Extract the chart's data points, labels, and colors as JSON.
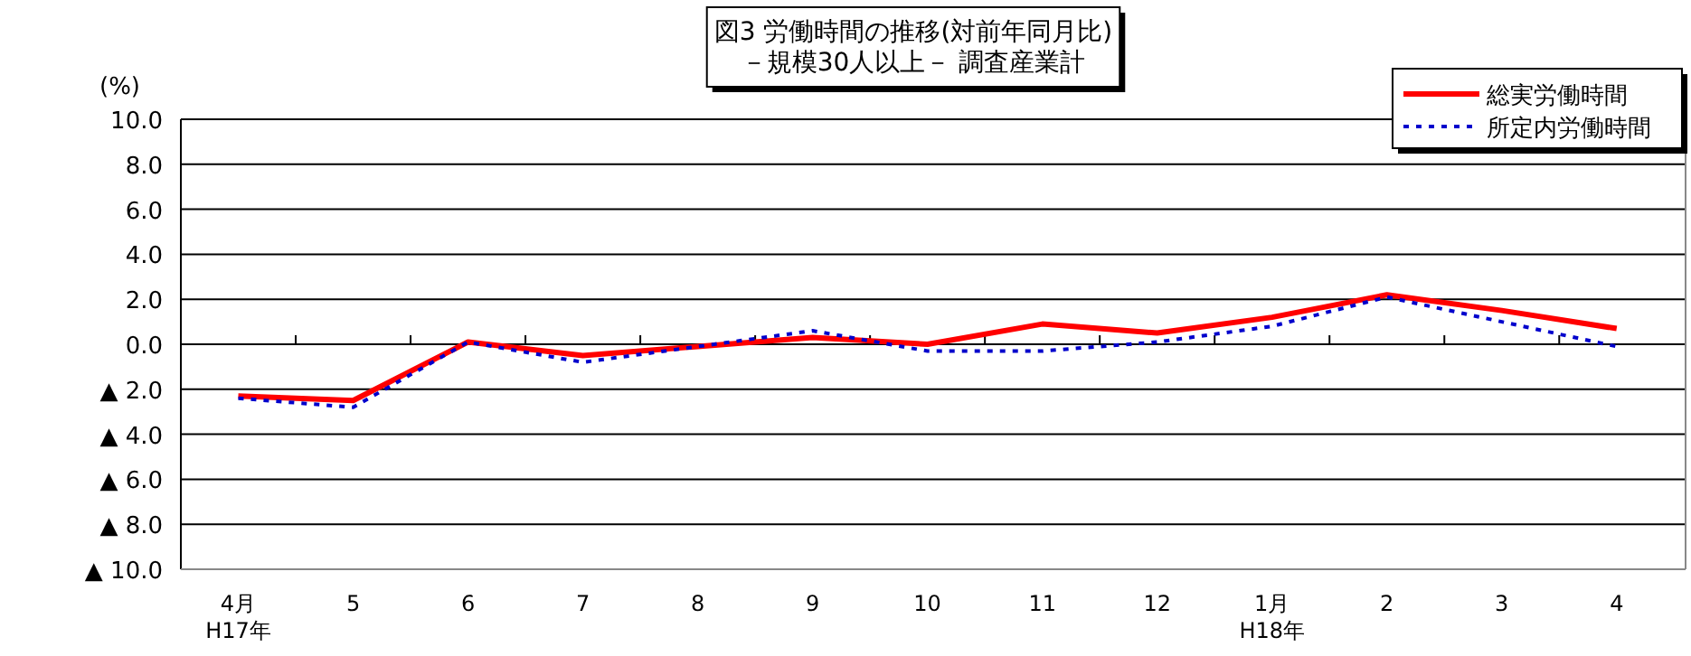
{
  "chart_data": {
    "type": "line",
    "title": "図3  労働時間の推移(対前年同月比)",
    "subtitle": "－規模30人以上－  調査産業計",
    "ylabel": "(%)",
    "categories": [
      "4月\nH17年",
      "5",
      "6",
      "7",
      "8",
      "9",
      "10",
      "11",
      "12",
      "1月\nH18年",
      "2",
      "3",
      "4"
    ],
    "series": [
      {
        "name": "総実労働時間",
        "color": "#ff0000",
        "line_style": "solid",
        "values": [
          -2.3,
          -2.5,
          0.1,
          -0.5,
          -0.1,
          0.3,
          0.0,
          0.9,
          0.5,
          1.2,
          2.2,
          1.5,
          0.7
        ]
      },
      {
        "name": "所定内労働時間",
        "color": "#0000cc",
        "line_style": "dotted",
        "values": [
          -2.4,
          -2.8,
          0.1,
          -0.8,
          -0.1,
          0.6,
          -0.3,
          -0.3,
          0.1,
          0.8,
          2.1,
          1.0,
          -0.1
        ]
      }
    ],
    "ylim": [
      -10,
      10
    ],
    "yticks": [
      {
        "value": 10,
        "label": "10.0"
      },
      {
        "value": 8,
        "label": "8.0"
      },
      {
        "value": 6,
        "label": "6.0"
      },
      {
        "value": 4,
        "label": "4.0"
      },
      {
        "value": 2,
        "label": "2.0"
      },
      {
        "value": 0,
        "label": "0.0"
      },
      {
        "value": -2,
        "label": "▲ 2.0"
      },
      {
        "value": -4,
        "label": "▲ 4.0"
      },
      {
        "value": -6,
        "label": "▲ 6.0"
      },
      {
        "value": -8,
        "label": "▲ 8.0"
      },
      {
        "value": -10,
        "label": "▲ 10.0"
      }
    ],
    "grid": "y",
    "legend": "top right",
    "marker": "none"
  }
}
